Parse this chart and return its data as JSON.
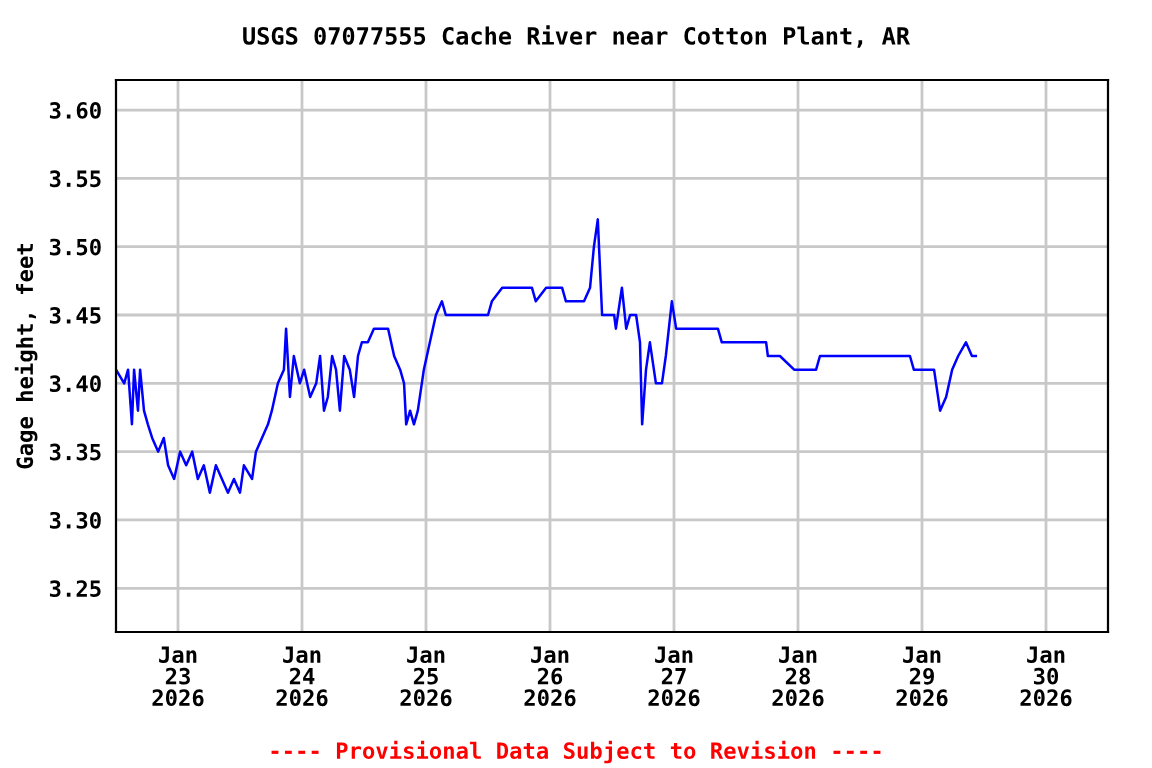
{
  "chart_data": {
    "type": "line",
    "title": "USGS 07077555 Cache River near Cotton Plant, AR",
    "ylabel": "Gage height, feet",
    "annotations": [
      "---- Provisional Data Subject to Revision ----"
    ],
    "x": [
      "2026-01-22T12:00",
      "2026-01-22T13:35",
      "2026-01-22T14:20",
      "2026-01-22T15:05",
      "2026-01-22T15:30",
      "2026-01-22T16:15",
      "2026-01-22T16:40",
      "2026-01-22T17:25",
      "2026-01-22T18:10",
      "2026-01-22T19:00",
      "2026-01-22T20:10",
      "2026-01-22T21:15",
      "2026-01-22T22:05",
      "2026-01-22T23:15",
      "2026-01-23T00:25",
      "2026-01-23T01:35",
      "2026-01-23T02:45",
      "2026-01-23T03:50",
      "2026-01-23T05:00",
      "2026-01-23T06:10",
      "2026-01-23T07:20",
      "2026-01-23T08:30",
      "2026-01-23T09:40",
      "2026-01-23T10:50",
      "2026-01-23T12:00",
      "2026-01-23T12:45",
      "2026-01-23T14:20",
      "2026-01-23T15:05",
      "2026-01-23T16:15",
      "2026-01-23T17:25",
      "2026-01-23T18:10",
      "2026-01-23T19:20",
      "2026-01-23T20:30",
      "2026-01-23T20:55",
      "2026-01-23T21:40",
      "2026-01-23T22:25",
      "2026-01-23T23:35",
      "2026-01-24T00:25",
      "2026-01-24T01:35",
      "2026-01-24T02:45",
      "2026-01-24T03:30",
      "2026-01-24T04:15",
      "2026-01-24T05:00",
      "2026-01-24T05:50",
      "2026-01-24T06:35",
      "2026-01-24T07:20",
      "2026-01-24T08:10",
      "2026-01-24T09:15",
      "2026-01-24T10:05",
      "2026-01-24T10:50",
      "2026-01-24T11:35",
      "2026-01-24T12:45",
      "2026-01-24T13:55",
      "2026-01-24T16:40",
      "2026-01-24T17:50",
      "2026-01-24T19:00",
      "2026-01-24T19:45",
      "2026-01-24T20:10",
      "2026-01-24T20:55",
      "2026-01-24T21:40",
      "2026-01-24T22:25",
      "2026-01-24T23:35",
      "2026-01-25T00:45",
      "2026-01-25T01:55",
      "2026-01-25T03:05",
      "2026-01-25T03:50",
      "2026-01-25T12:00",
      "2026-01-25T12:45",
      "2026-01-25T14:45",
      "2026-01-25T20:30",
      "2026-01-25T21:15",
      "2026-01-25T23:15",
      "2026-01-26T02:20",
      "2026-01-26T03:05",
      "2026-01-26T06:35",
      "2026-01-26T07:45",
      "2026-01-26T08:30",
      "2026-01-26T09:15",
      "2026-01-26T10:05",
      "2026-01-26T12:25",
      "2026-01-26T12:45",
      "2026-01-26T13:55",
      "2026-01-26T14:45",
      "2026-01-26T15:30",
      "2026-01-26T16:40",
      "2026-01-26T17:25",
      "2026-01-26T17:50",
      "2026-01-26T18:35",
      "2026-01-26T19:20",
      "2026-01-26T20:30",
      "2026-01-26T21:40",
      "2026-01-26T22:25",
      "2026-01-26T23:35",
      "2026-01-27T00:25",
      "2026-01-27T01:10",
      "2026-01-27T08:30",
      "2026-01-27T09:15",
      "2026-01-27T17:50",
      "2026-01-27T18:10",
      "2026-01-27T20:30",
      "2026-01-27T23:15",
      "2026-01-28T03:30",
      "2026-01-28T04:15",
      "2026-01-28T21:40",
      "2026-01-28T22:25",
      "2026-01-29T02:20",
      "2026-01-29T03:30",
      "2026-01-29T04:40",
      "2026-01-29T05:50",
      "2026-01-29T07:00",
      "2026-01-29T08:30",
      "2026-01-29T09:40",
      "2026-01-29T10:25"
    ],
    "series": [
      {
        "color": "#0000ff",
        "values": [
          3.41,
          3.4,
          3.41,
          3.37,
          3.41,
          3.38,
          3.41,
          3.38,
          3.37,
          3.36,
          3.35,
          3.36,
          3.34,
          3.33,
          3.35,
          3.34,
          3.35,
          3.33,
          3.34,
          3.32,
          3.34,
          3.33,
          3.32,
          3.33,
          3.32,
          3.34,
          3.33,
          3.35,
          3.36,
          3.37,
          3.38,
          3.4,
          3.41,
          3.44,
          3.39,
          3.42,
          3.4,
          3.41,
          3.39,
          3.4,
          3.42,
          3.38,
          3.39,
          3.42,
          3.41,
          3.38,
          3.42,
          3.41,
          3.39,
          3.42,
          3.43,
          3.43,
          3.44,
          3.44,
          3.42,
          3.41,
          3.4,
          3.37,
          3.38,
          3.37,
          3.38,
          3.41,
          3.43,
          3.45,
          3.46,
          3.45,
          3.45,
          3.46,
          3.47,
          3.47,
          3.46,
          3.47,
          3.47,
          3.46,
          3.46,
          3.47,
          3.5,
          3.52,
          3.45,
          3.45,
          3.44,
          3.47,
          3.44,
          3.45,
          3.45,
          3.43,
          3.37,
          3.41,
          3.43,
          3.4,
          3.4,
          3.42,
          3.46,
          3.44,
          3.44,
          3.44,
          3.43,
          3.43,
          3.42,
          3.42,
          3.41,
          3.41,
          3.42,
          3.42,
          3.41,
          3.41,
          3.38,
          3.39,
          3.41,
          3.42,
          3.43,
          3.42,
          3.42
        ]
      }
    ],
    "xlim": [
      "2026-01-22T12:00",
      "2026-01-30T12:00"
    ],
    "xticks": [
      {
        "value": "2026-01-23",
        "label": "Jan\n23\n2026"
      },
      {
        "value": "2026-01-24",
        "label": "Jan\n24\n2026"
      },
      {
        "value": "2026-01-25",
        "label": "Jan\n25\n2026"
      },
      {
        "value": "2026-01-26",
        "label": "Jan\n26\n2026"
      },
      {
        "value": "2026-01-27",
        "label": "Jan\n27\n2026"
      },
      {
        "value": "2026-01-28",
        "label": "Jan\n28\n2026"
      },
      {
        "value": "2026-01-29",
        "label": "Jan\n29\n2026"
      },
      {
        "value": "2026-01-30",
        "label": "Jan\n30\n2026"
      }
    ],
    "ylim": [
      3.218,
      3.622
    ],
    "yticks": [
      {
        "value": 3.25,
        "label": "3.25"
      },
      {
        "value": 3.3,
        "label": "3.30"
      },
      {
        "value": 3.35,
        "label": "3.35"
      },
      {
        "value": 3.4,
        "label": "3.40"
      },
      {
        "value": 3.45,
        "label": "3.45"
      },
      {
        "value": 3.5,
        "label": "3.50"
      },
      {
        "value": 3.55,
        "label": "3.55"
      },
      {
        "value": 3.6,
        "label": "3.60"
      }
    ],
    "grid": true
  }
}
